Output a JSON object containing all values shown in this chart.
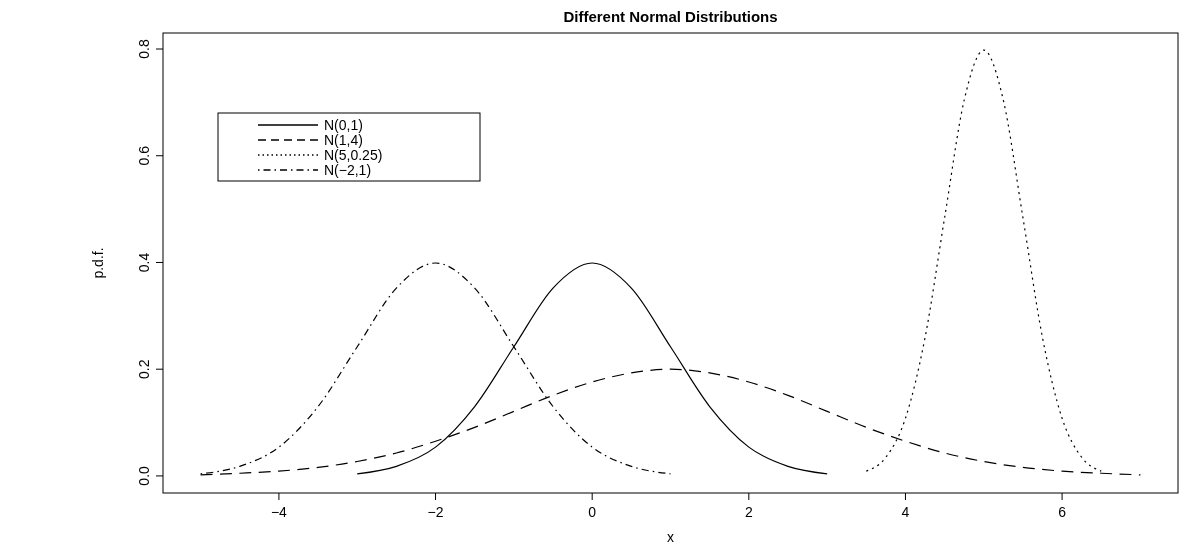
{
  "chart_data": {
    "type": "line",
    "title": "Different Normal Distributions",
    "xlabel": "x",
    "ylabel": "p.d.f.",
    "xlim": [
      -5.48,
      7.48
    ],
    "ylim": [
      -0.032,
      0.83
    ],
    "xticks": [
      -4,
      -2,
      0,
      2,
      4,
      6
    ],
    "yticks": [
      {
        "value": 0,
        "label": "0.0"
      },
      0.2,
      0.4,
      0.6,
      0.8
    ],
    "legend": "top left",
    "grid": false,
    "series": [
      {
        "name": "N(0,1)",
        "color": "#000000",
        "line_style": "solid",
        "x": [
          -3,
          -2.5,
          -2,
          -1.5,
          -1,
          -0.5,
          0,
          0.5,
          1,
          1.5,
          2,
          2.5,
          3
        ],
        "values": [
          0.004,
          0.018,
          0.054,
          0.13,
          0.242,
          0.352,
          0.399,
          0.352,
          0.242,
          0.13,
          0.054,
          0.018,
          0.004
        ]
      },
      {
        "name": "N(1,4)",
        "color": "#000000",
        "line_style": "dashed",
        "x": [
          -5,
          -4.5,
          -4,
          -3.5,
          -3,
          -2.5,
          -2,
          -1.5,
          -1,
          -0.5,
          0,
          0.5,
          1,
          1.5,
          2,
          2.5,
          3,
          3.5,
          4,
          4.5,
          5,
          5.5,
          6,
          6.5,
          7
        ],
        "values": [
          0.002,
          0.005,
          0.009,
          0.016,
          0.027,
          0.043,
          0.065,
          0.091,
          0.121,
          0.151,
          0.176,
          0.193,
          0.2,
          0.193,
          0.176,
          0.151,
          0.121,
          0.091,
          0.065,
          0.043,
          0.027,
          0.016,
          0.009,
          0.005,
          0.002
        ]
      },
      {
        "name": "N(5,0.25)",
        "color": "#000000",
        "line_style": "dotted",
        "x": [
          3.5,
          3.75,
          4,
          4.25,
          4.5,
          4.75,
          5,
          5.25,
          5.5,
          5.75,
          6,
          6.25,
          6.5
        ],
        "values": [
          0.009,
          0.035,
          0.108,
          0.259,
          0.484,
          0.704,
          0.798,
          0.704,
          0.484,
          0.259,
          0.108,
          0.035,
          0.009
        ]
      },
      {
        "name": "N(−2,1)",
        "color": "#000000",
        "line_style": "dashdot",
        "x": [
          -5,
          -4.5,
          -4,
          -3.5,
          -3,
          -2.5,
          -2,
          -1.5,
          -1,
          -0.5,
          0,
          0.5,
          1
        ],
        "values": [
          0.004,
          0.018,
          0.054,
          0.13,
          0.242,
          0.352,
          0.399,
          0.352,
          0.242,
          0.13,
          0.054,
          0.018,
          0.004
        ]
      }
    ]
  }
}
